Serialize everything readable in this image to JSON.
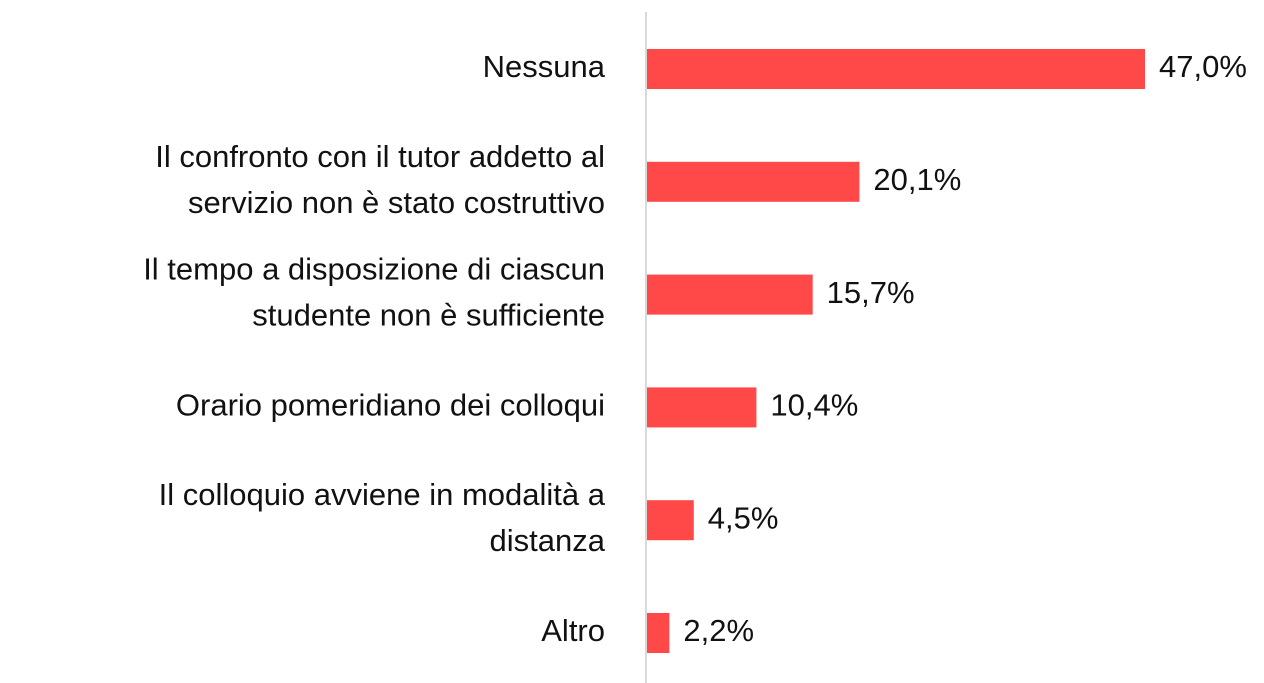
{
  "chart_data": {
    "type": "hbar",
    "categories": [
      "Nessuna",
      "Il confronto con il tutor addetto al\nservizio non è stato costruttivo",
      "Il tempo a disposizione di ciascun\nstudente non è sufficiente",
      "Orario pomeridiano dei colloqui",
      "Il colloquio avviene in modalità a\ndistanza",
      "Altro"
    ],
    "values": [
      47.0,
      20.1,
      15.7,
      10.4,
      4.5,
      2.2
    ],
    "value_labels": [
      "47,0%",
      "20,1%",
      "15,7%",
      "10,4%",
      "4,5%",
      "2,2%"
    ],
    "color": "#ff4848"
  }
}
